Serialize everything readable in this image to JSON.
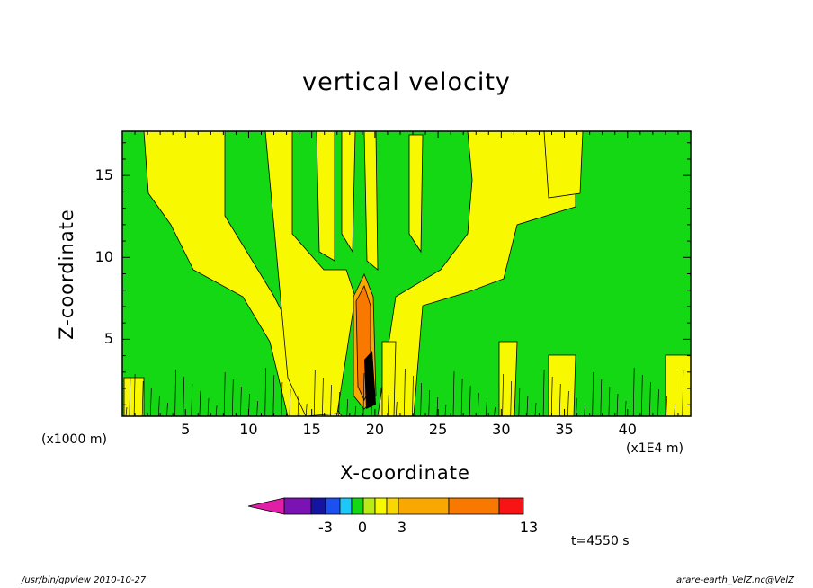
{
  "chart_data": {
    "type": "heatmap",
    "title": "vertical velocity",
    "xlabel": "X-coordinate",
    "ylabel": "Z-coordinate",
    "x_unit": "(x1E4 m)",
    "y_unit": "(x1000 m)",
    "xlim": [
      0,
      45
    ],
    "ylim": [
      0.3,
      17.7
    ],
    "x_ticks": [
      5,
      10,
      15,
      20,
      25,
      30,
      35,
      40
    ],
    "y_ticks": [
      5,
      10,
      15
    ],
    "colorbar": {
      "colors": [
        "#e01ea8",
        "#7a12b4",
        "#1414a0",
        "#1c50f0",
        "#1cc8f8",
        "#14d814",
        "#b8ec14",
        "#f8f800",
        "#f8d800",
        "#f8a800",
        "#f87800",
        "#f81414",
        "#f87c7c",
        "#f8b8c8"
      ],
      "tick_labels": [
        "-3",
        "0",
        "3",
        "13"
      ]
    },
    "time_label": "t=4550 s"
  },
  "footer": {
    "left": "/usr/bin/gpview   2010-10-27",
    "right": "arare-earth_VelZ.nc@VelZ"
  }
}
